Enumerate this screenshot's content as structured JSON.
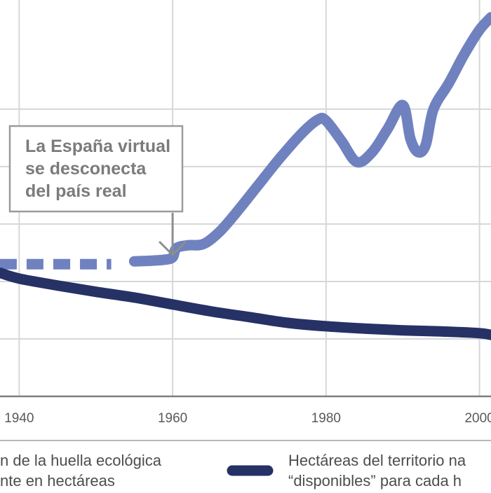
{
  "colors": {
    "footprint": "#6f82bf",
    "territory": "#263165",
    "grid": "#d6d7d9",
    "axis": "#7d7e80",
    "annotation_box": "#9a9b9d",
    "annotation_arrow": "#8c8d8f"
  },
  "chart_data": {
    "type": "line",
    "title": "",
    "xlabel": "",
    "ylabel": "",
    "xlim": [
      1937.5,
      2001.5
    ],
    "ylim": [
      0,
      6.9
    ],
    "x_ticks": [
      {
        "value": 1940,
        "label": "1940"
      },
      {
        "value": 1960,
        "label": "1960"
      },
      {
        "value": 1980,
        "label": "1980"
      },
      {
        "value": 2000,
        "label": "2000"
      }
    ],
    "y_gridlines": [
      1,
      2,
      3,
      4,
      5
    ],
    "grid": true,
    "legend_placement": "bottom",
    "series": [
      {
        "key": "footprint",
        "estimated": [
          [
            1937.5,
            2.3
          ],
          [
            1952,
            2.3
          ]
        ],
        "values": [
          [
            1955,
            2.35
          ],
          [
            1957,
            2.36
          ],
          [
            1959,
            2.38
          ],
          [
            1960,
            2.42
          ],
          [
            1960.5,
            2.58
          ],
          [
            1962,
            2.63
          ],
          [
            1964,
            2.65
          ],
          [
            1966,
            2.85
          ],
          [
            1968,
            3.15
          ],
          [
            1971,
            3.65
          ],
          [
            1974,
            4.15
          ],
          [
            1977,
            4.6
          ],
          [
            1979,
            4.82
          ],
          [
            1980,
            4.8
          ],
          [
            1982,
            4.45
          ],
          [
            1984,
            4.08
          ],
          [
            1986,
            4.25
          ],
          [
            1988,
            4.65
          ],
          [
            1990,
            5.07
          ],
          [
            1991,
            4.48
          ],
          [
            1992,
            4.25
          ],
          [
            1993,
            4.38
          ],
          [
            1994,
            5.0
          ],
          [
            1996,
            5.45
          ],
          [
            1998,
            5.95
          ],
          [
            2000,
            6.38
          ],
          [
            2001.5,
            6.6
          ]
        ]
      },
      {
        "key": "territory",
        "values": [
          [
            1937.5,
            2.15
          ],
          [
            1940,
            2.05
          ],
          [
            1945,
            1.93
          ],
          [
            1950,
            1.82
          ],
          [
            1955,
            1.72
          ],
          [
            1960,
            1.6
          ],
          [
            1965,
            1.48
          ],
          [
            1970,
            1.38
          ],
          [
            1975,
            1.28
          ],
          [
            1980,
            1.22
          ],
          [
            1985,
            1.18
          ],
          [
            1990,
            1.15
          ],
          [
            1995,
            1.13
          ],
          [
            2000,
            1.1
          ],
          [
            2001.5,
            1.07
          ]
        ]
      }
    ],
    "annotations": [
      {
        "lines": [
          "La España virtual",
          "se desconecta",
          "del país real"
        ],
        "points_to_x": 1960
      }
    ],
    "legend": [
      {
        "key": "footprint",
        "lines": [
          "n de la huella ecológica",
          "nte en hectáreas"
        ]
      },
      {
        "key": "territory",
        "lines": [
          "Hectáreas del territorio na",
          "“disponibles” para cada h"
        ]
      }
    ]
  }
}
